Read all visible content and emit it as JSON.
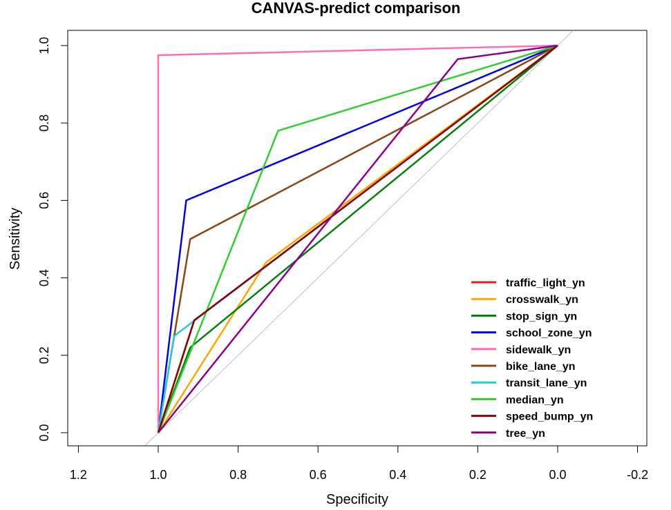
{
  "chart_data": {
    "type": "line",
    "title": "CANVAS-predict comparison",
    "xlabel": "Specificity",
    "ylabel": "Sensitivity",
    "xlim": [
      1.2,
      -0.2
    ],
    "ylim": [
      0,
      1
    ],
    "x_ticks": [
      "1.2",
      "1.0",
      "0.8",
      "0.6",
      "0.4",
      "0.2",
      "0.0",
      "-0.2"
    ],
    "y_ticks": [
      "0.0",
      "0.2",
      "0.4",
      "0.6",
      "0.8",
      "1.0"
    ],
    "legend_position": "bottom-right",
    "grid": false,
    "reference_line": {
      "from": [
        1.04,
        -0.04
      ],
      "to": [
        -0.04,
        1.04
      ],
      "color": "#bebebe"
    },
    "series": [
      {
        "name": "traffic_light_yn",
        "color": "#e41a1c",
        "points": [
          [
            1.0,
            0.0
          ],
          [
            0.91,
            0.29
          ],
          [
            0.0,
            1.0
          ]
        ]
      },
      {
        "name": "crosswalk_yn",
        "color": "#ffa500",
        "points": [
          [
            1.0,
            0.0
          ],
          [
            0.73,
            0.44
          ],
          [
            0.0,
            1.0
          ]
        ]
      },
      {
        "name": "stop_sign_yn",
        "color": "#00800a",
        "points": [
          [
            1.0,
            0.0
          ],
          [
            0.92,
            0.22
          ],
          [
            0.0,
            1.0
          ]
        ]
      },
      {
        "name": "school_zone_yn",
        "color": "#0000e6",
        "points": [
          [
            1.0,
            0.0
          ],
          [
            0.93,
            0.6
          ],
          [
            0.0,
            1.0
          ]
        ]
      },
      {
        "name": "sidewalk_yn",
        "color": "#ff6eb4",
        "points": [
          [
            1.0,
            0.0
          ],
          [
            1.0,
            0.975
          ],
          [
            0.0,
            1.0
          ]
        ]
      },
      {
        "name": "bike_lane_yn",
        "color": "#8b4513",
        "points": [
          [
            1.0,
            0.0
          ],
          [
            0.92,
            0.5
          ],
          [
            0.0,
            1.0
          ]
        ]
      },
      {
        "name": "transit_lane_yn",
        "color": "#1ecbe1",
        "points": [
          [
            1.0,
            0.0
          ],
          [
            0.96,
            0.25
          ],
          [
            0.0,
            1.0
          ]
        ]
      },
      {
        "name": "median_yn",
        "color": "#32cd32",
        "points": [
          [
            1.0,
            0.0
          ],
          [
            0.7,
            0.78
          ],
          [
            0.0,
            1.0
          ]
        ]
      },
      {
        "name": "speed_bump_yn",
        "color": "#8b0000",
        "points": [
          [
            1.0,
            0.0
          ],
          [
            0.91,
            0.29
          ],
          [
            0.0,
            1.0
          ]
        ]
      },
      {
        "name": "tree_yn",
        "color": "#8b008b",
        "points": [
          [
            1.0,
            0.0
          ],
          [
            0.25,
            0.965
          ],
          [
            0.0,
            1.0
          ]
        ]
      }
    ]
  }
}
